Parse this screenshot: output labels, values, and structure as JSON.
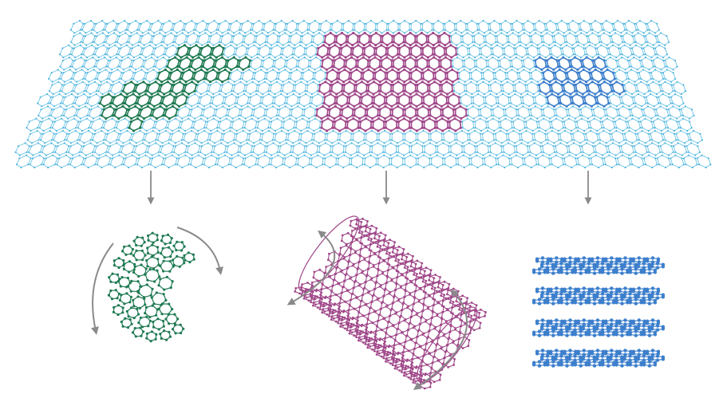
{
  "colors": {
    "sheet": "#6fc6e6",
    "sheet_node": "#4fb3dc",
    "fullerene": "#1f7a52",
    "nanotube": "#a0488a",
    "graphite": "#3d7fcc",
    "graphite_node": "#4f97dc",
    "arrow": "#8a8a8a"
  },
  "diagram": {
    "source": {
      "name": "graphene-sheet",
      "regions": [
        {
          "name": "fullerene-patch",
          "color_key": "fullerene"
        },
        {
          "name": "nanotube-patch",
          "color_key": "nanotube"
        },
        {
          "name": "graphite-patch",
          "color_key": "graphite"
        }
      ]
    },
    "products": [
      {
        "name": "fullerene",
        "icon": "fullerene-ball-icon",
        "color_key": "fullerene"
      },
      {
        "name": "nanotube",
        "icon": "nanotube-icon",
        "color_key": "nanotube"
      },
      {
        "name": "graphite",
        "icon": "graphite-stack-icon",
        "color_key": "graphite",
        "layers": 4
      }
    ],
    "connections": [
      {
        "from": "fullerene-patch",
        "to": "fullerene"
      },
      {
        "from": "nanotube-patch",
        "to": "nanotube"
      },
      {
        "from": "graphite-patch",
        "to": "graphite"
      }
    ]
  }
}
